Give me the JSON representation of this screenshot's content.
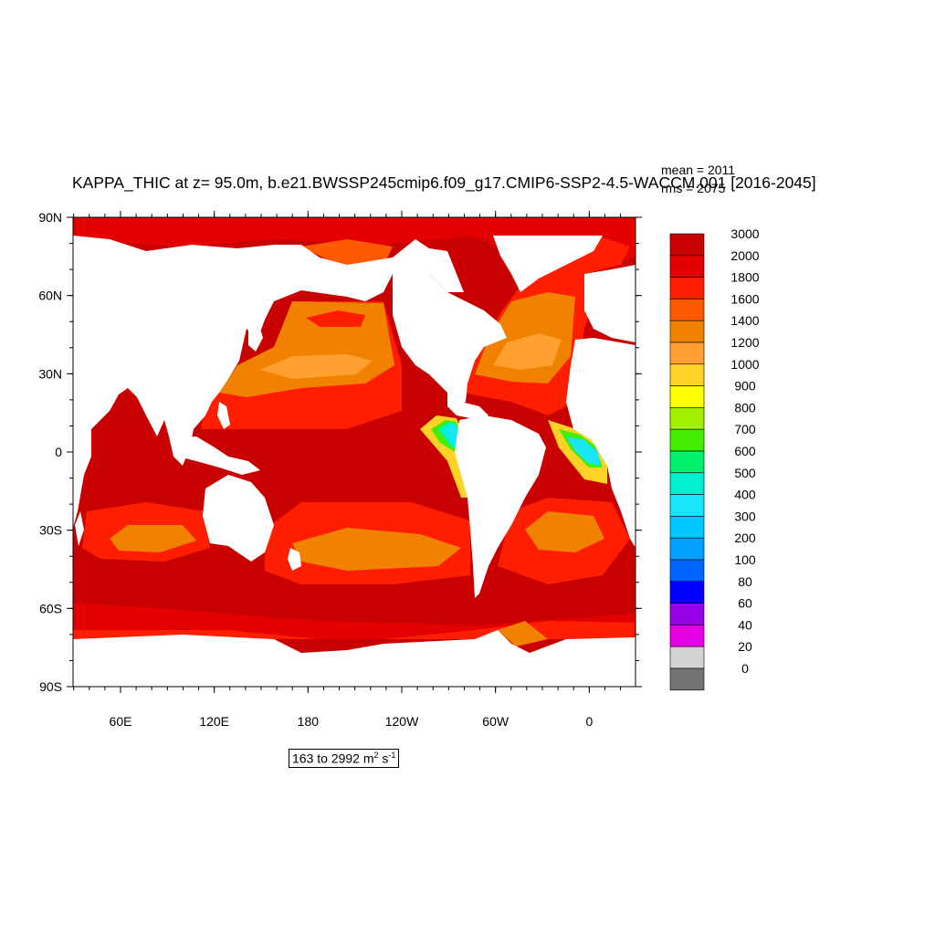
{
  "title": "KAPPA_THIC at z=  95.0m, b.e21.BWSSP245cmip6.f09_g17.CMIP6-SSP2-4.5-WACCM.001 [2016-2045]",
  "stats": {
    "mean": "mean = 2011",
    "rms": "rms = 2075"
  },
  "range_label": {
    "prefix": "163 to 2992 m",
    "exp1": "2",
    "mid": " s",
    "exp2": "-1"
  },
  "map": {
    "lat_ticks": [
      "90N",
      "60N",
      "30N",
      "0",
      "30S",
      "60S",
      "90S"
    ],
    "lon_ticks": [
      "60E",
      "120E",
      "180",
      "120W",
      "60W",
      "0"
    ],
    "ocean_color": "#c80000",
    "land_color": "#ffffff"
  },
  "colorbar": {
    "labels": [
      "3000",
      "2000",
      "1800",
      "1600",
      "1400",
      "1200",
      "1000",
      "900",
      "800",
      "700",
      "600",
      "500",
      "400",
      "300",
      "200",
      "100",
      "80",
      "60",
      "40",
      "20",
      "0"
    ],
    "colors": [
      "#c80000",
      "#e40000",
      "#ff1e00",
      "#ff5a00",
      "#f08200",
      "#ffa030",
      "#ffd228",
      "#ffff00",
      "#a0f000",
      "#44ee00",
      "#00f06e",
      "#00f0d2",
      "#18e6f8",
      "#00c8ff",
      "#00a0ff",
      "#0064ff",
      "#0000ff",
      "#9600e6",
      "#e600e6",
      "#d2d2d2",
      "#737373"
    ]
  },
  "chart_data": {
    "type": "heatmap",
    "variable": "KAPPA_THIC",
    "depth": "95.0m",
    "units": "m2 s-1",
    "min": 163,
    "max": 2992,
    "mean": 2011,
    "rms": 2075,
    "x_ticks": [
      "60E",
      "120E",
      "180",
      "120W",
      "60W",
      "0"
    ],
    "y_ticks": [
      "90N",
      "60N",
      "30N",
      "0",
      "30S",
      "60S",
      "90S"
    ],
    "contour_levels": [
      0,
      20,
      40,
      60,
      80,
      100,
      200,
      300,
      400,
      500,
      600,
      700,
      800,
      900,
      1000,
      1200,
      1400,
      1600,
      1800,
      2000,
      3000
    ]
  }
}
